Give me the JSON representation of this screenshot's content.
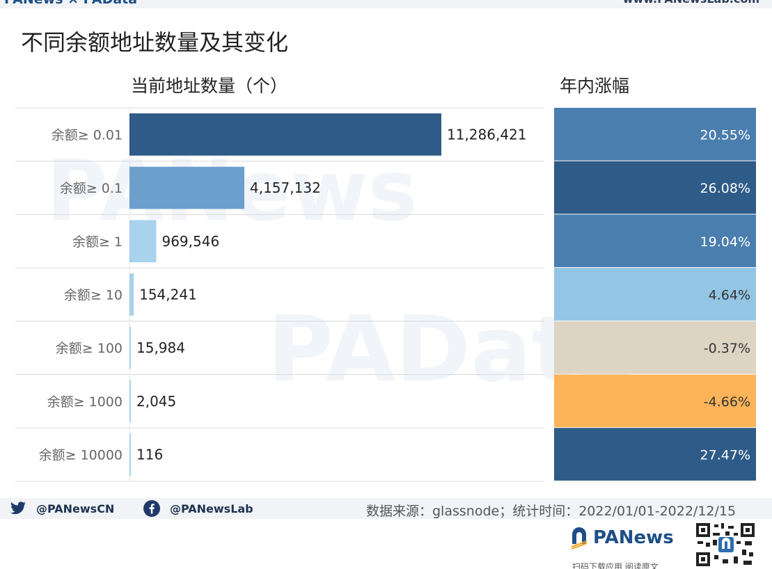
{
  "header": {
    "brand": "PANews × PAData",
    "site": "www.PANewsLab.com"
  },
  "chart_data": {
    "type": "bar",
    "title": "不同余额地址数量及其变化",
    "column_headers": [
      "当前地址数量（个）",
      "年内涨幅"
    ],
    "categories": [
      "余额≥ 0.01",
      "余额≥ 0.1",
      "余额≥ 1",
      "余额≥ 10",
      "余额≥ 100",
      "余额≥ 1000",
      "余额≥ 10000"
    ],
    "series": [
      {
        "values": [
          11286421,
          4157132,
          969546,
          154241,
          15984,
          2045,
          116
        ]
      },
      {
        "values": [
          20.55,
          26.08,
          19.04,
          4.64,
          -0.37,
          -4.66,
          27.47
        ]
      }
    ],
    "value_labels": [
      "11,286,421",
      "4,157,132",
      "969,546",
      "154,241",
      "15,984",
      "2,045",
      "116"
    ],
    "change_labels": [
      "20.55%",
      "26.08%",
      "19.04%",
      "4.64%",
      "-0.37%",
      "-4.66%",
      "27.47%"
    ],
    "xlim": [
      0,
      11286421
    ],
    "colors": {
      "bar_dark": "#2e5b87",
      "bar_mid": "#6d9fcd",
      "bar_light": "#a9d2ec",
      "heat_high": "#2e5b87",
      "heat_mid": "#4a7eaf",
      "heat_low": "#93c5e4",
      "heat_neutral": "#ddd4c4",
      "heat_negative": "#fcb35a"
    },
    "watermarks": [
      "PANews",
      "PAData"
    ]
  },
  "footer": {
    "twitter": "@PANewsCN",
    "facebook": "@PANewsLab",
    "source": "数据来源：glassnode；统计时间：2022/01/01-2022/12/15",
    "logo": "PANews",
    "scan": "扫码下载应用 阅读原文",
    "icons": [
      "twitter-icon",
      "facebook-icon",
      "qr-code-icon"
    ]
  }
}
